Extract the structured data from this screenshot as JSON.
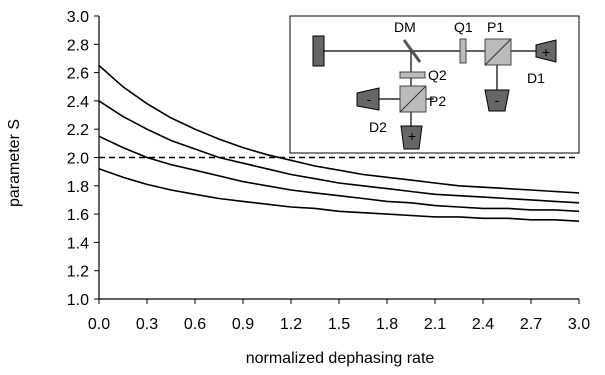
{
  "chart_data": {
    "type": "line",
    "title": "",
    "xlabel": "normalized dephasing rate",
    "ylabel": "parameter S",
    "xlim": [
      0.0,
      3.0
    ],
    "ylim": [
      1.0,
      3.0
    ],
    "x_ticks": [
      "0.0",
      "0.3",
      "0.6",
      "0.9",
      "1.2",
      "1.5",
      "1.8",
      "2.1",
      "2.4",
      "2.7",
      "3.0"
    ],
    "y_ticks": [
      "1.0",
      "1.2",
      "1.4",
      "1.6",
      "1.8",
      "2.0",
      "2.2",
      "2.4",
      "2.6",
      "2.8",
      "3.0"
    ],
    "grid": false,
    "x": [
      0.0,
      0.15,
      0.3,
      0.45,
      0.6,
      0.75,
      0.9,
      1.05,
      1.2,
      1.35,
      1.5,
      1.65,
      1.8,
      1.95,
      2.1,
      2.25,
      2.4,
      2.55,
      2.7,
      2.85,
      3.0
    ],
    "series": [
      {
        "values": [
          2.65,
          2.5,
          2.38,
          2.28,
          2.2,
          2.13,
          2.07,
          2.02,
          1.98,
          1.94,
          1.91,
          1.88,
          1.86,
          1.84,
          1.82,
          1.8,
          1.79,
          1.78,
          1.77,
          1.76,
          1.75
        ]
      },
      {
        "values": [
          2.4,
          2.29,
          2.2,
          2.12,
          2.06,
          2.0,
          1.96,
          1.92,
          1.88,
          1.85,
          1.82,
          1.8,
          1.78,
          1.76,
          1.74,
          1.73,
          1.72,
          1.71,
          1.7,
          1.69,
          1.68
        ]
      },
      {
        "values": [
          2.15,
          2.07,
          2.0,
          1.95,
          1.91,
          1.87,
          1.83,
          1.8,
          1.77,
          1.75,
          1.73,
          1.71,
          1.69,
          1.68,
          1.66,
          1.65,
          1.64,
          1.64,
          1.63,
          1.63,
          1.62
        ]
      },
      {
        "values": [
          1.92,
          1.86,
          1.81,
          1.77,
          1.74,
          1.71,
          1.69,
          1.67,
          1.65,
          1.64,
          1.62,
          1.61,
          1.6,
          1.59,
          1.58,
          1.58,
          1.57,
          1.57,
          1.56,
          1.56,
          1.55
        ]
      }
    ],
    "reference_line": {
      "y": 2.0,
      "style": "dashed"
    },
    "inset": {
      "labels": [
        "DM",
        "Q1",
        "P1",
        "Q2",
        "P2",
        "D1",
        "D2"
      ],
      "detector_signs": {
        "d1": "+",
        "p1_minus": "-",
        "d2_minus": "-",
        "d2_plus": "+"
      }
    }
  }
}
